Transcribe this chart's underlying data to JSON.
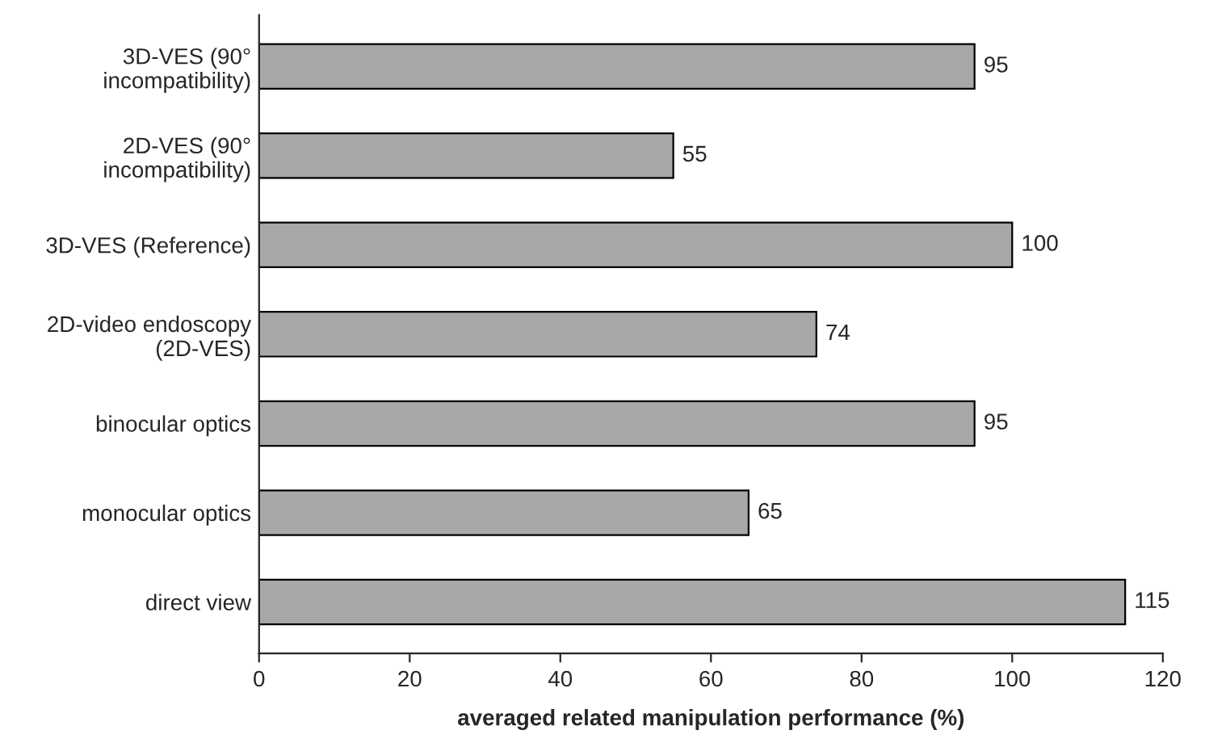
{
  "chart_data": {
    "type": "bar",
    "orientation": "horizontal",
    "categories": [
      "3D-VES (90° incompatibility)",
      "2D-VES (90° incompatibility)",
      "3D-VES (Reference)",
      "2D-video endoscopy (2D-VES)",
      "binocular optics",
      "monocular optics",
      "direct view"
    ],
    "values": [
      95,
      55,
      100,
      74,
      95,
      65,
      115
    ],
    "color": "#a8a8a8",
    "xlim": [
      0,
      120
    ],
    "xticks": [
      0,
      20,
      40,
      60,
      80,
      100,
      120
    ],
    "xlabel": "averaged related manipulation performance (%)",
    "data_labels": true,
    "grid": false,
    "legend": false
  }
}
